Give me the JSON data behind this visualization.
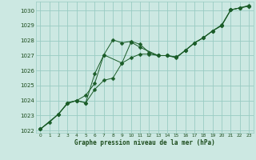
{
  "xlabel": "Graphe pression niveau de la mer (hPa)",
  "bg_color": "#cce8e2",
  "grid_color": "#99ccc2",
  "line_color": "#1a5c28",
  "ylim": [
    1021.85,
    1030.6
  ],
  "xlim": [
    -0.5,
    23.5
  ],
  "yticks": [
    1022,
    1023,
    1024,
    1025,
    1026,
    1027,
    1028,
    1029,
    1030
  ],
  "xticks": [
    0,
    1,
    2,
    3,
    4,
    5,
    6,
    7,
    8,
    9,
    10,
    11,
    12,
    13,
    14,
    15,
    16,
    17,
    18,
    19,
    20,
    21,
    22,
    23
  ],
  "line1_x": [
    0,
    1,
    2,
    3,
    4,
    5,
    6,
    7,
    8,
    9,
    10,
    11,
    12,
    13,
    14,
    15,
    16,
    17,
    18,
    19,
    20,
    21,
    22,
    23
  ],
  "line1_y": [
    1022.1,
    1022.55,
    1023.1,
    1023.8,
    1024.0,
    1023.85,
    1024.75,
    1025.35,
    1025.5,
    1026.5,
    1026.85,
    1027.1,
    1027.1,
    1027.0,
    1027.0,
    1026.85,
    1027.35,
    1027.85,
    1028.2,
    1028.65,
    1029.05,
    1030.05,
    1030.18,
    1030.3
  ],
  "line2_x": [
    0,
    2,
    3,
    4,
    5,
    6,
    7,
    9,
    10,
    11,
    13,
    14,
    15,
    16,
    17,
    18,
    19,
    20,
    21,
    22,
    23
  ],
  "line2_y": [
    1022.1,
    1023.1,
    1023.85,
    1024.0,
    1023.85,
    1025.8,
    1027.05,
    1026.5,
    1027.9,
    1027.55,
    1027.0,
    1027.0,
    1026.9,
    1027.35,
    1027.85,
    1028.2,
    1028.65,
    1029.0,
    1030.05,
    1030.18,
    1030.3
  ],
  "line3_x": [
    0,
    2,
    3,
    4,
    5,
    6,
    7,
    8,
    9,
    10,
    11,
    12,
    13,
    14,
    15,
    16,
    17,
    18,
    19,
    20,
    21,
    22,
    23
  ],
  "line3_y": [
    1022.1,
    1023.1,
    1023.85,
    1024.0,
    1024.35,
    1025.15,
    1027.05,
    1028.05,
    1027.85,
    1027.95,
    1027.75,
    1027.2,
    1027.0,
    1027.0,
    1026.9,
    1027.35,
    1027.85,
    1028.2,
    1028.65,
    1029.0,
    1030.05,
    1030.18,
    1030.35
  ],
  "marker_size": 2.5,
  "linewidth": 0.7,
  "tick_fontsize": 5.0,
  "xlabel_fontsize": 5.5
}
